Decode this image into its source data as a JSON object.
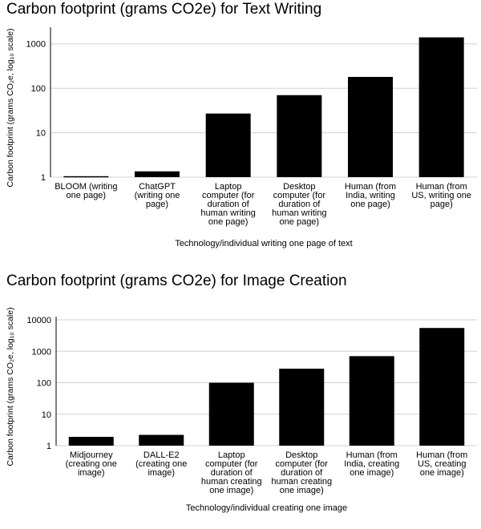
{
  "chart_data": [
    {
      "type": "bar",
      "title": "Carbon footprint (grams CO2e) for Text Writing",
      "ylabel": "Carbon footprint (grams CO₂e, log₁₀ scale)",
      "xlabel": "Technology/individual writing one page of text",
      "y_scale": "log10",
      "ylim": [
        1,
        2000
      ],
      "y_ticks": [
        "1",
        "10",
        "100",
        "1000"
      ],
      "grid": true,
      "categories": [
        [
          "BLOOM (writing",
          "one page)"
        ],
        [
          "ChatGPT",
          "(writing one",
          "page)"
        ],
        [
          "Laptop",
          "computer (for",
          "duration of",
          "human writing",
          "one page)"
        ],
        [
          "Desktop",
          "computer (for",
          "duration of",
          "human writing",
          "one page)"
        ],
        [
          "Human (from",
          "India, writing",
          "one page)"
        ],
        [
          "Human (from",
          "US, writing one",
          "page)"
        ]
      ],
      "values": [
        1.05,
        1.35,
        27,
        70,
        180,
        1400
      ],
      "bar_color": "#000000"
    },
    {
      "type": "bar",
      "title": "Carbon footprint (grams CO2e) for Image Creation",
      "ylabel": "Carbon footprint (grams CO₂e, log₁₀ scale)",
      "xlabel": "Technology/individual creating one image",
      "y_scale": "log10",
      "ylim": [
        1,
        10000
      ],
      "y_ticks": [
        "1",
        "10",
        "100",
        "1000",
        "10000"
      ],
      "grid": true,
      "categories": [
        [
          "Midjourney",
          "(creating one",
          "image)"
        ],
        [
          "DALL-E2",
          "(creating one",
          "image)"
        ],
        [
          "Laptop",
          "computer (for",
          "duration of",
          "human creating",
          "one image)"
        ],
        [
          "Desktop",
          "computer (for",
          "duration of",
          "human creating",
          "one image)"
        ],
        [
          "Human (from",
          "India, creating",
          "one image)"
        ],
        [
          "Human (from",
          "US, creating",
          "one image)"
        ]
      ],
      "values": [
        1.9,
        2.2,
        100,
        280,
        700,
        5500
      ],
      "bar_color": "#000000"
    }
  ]
}
